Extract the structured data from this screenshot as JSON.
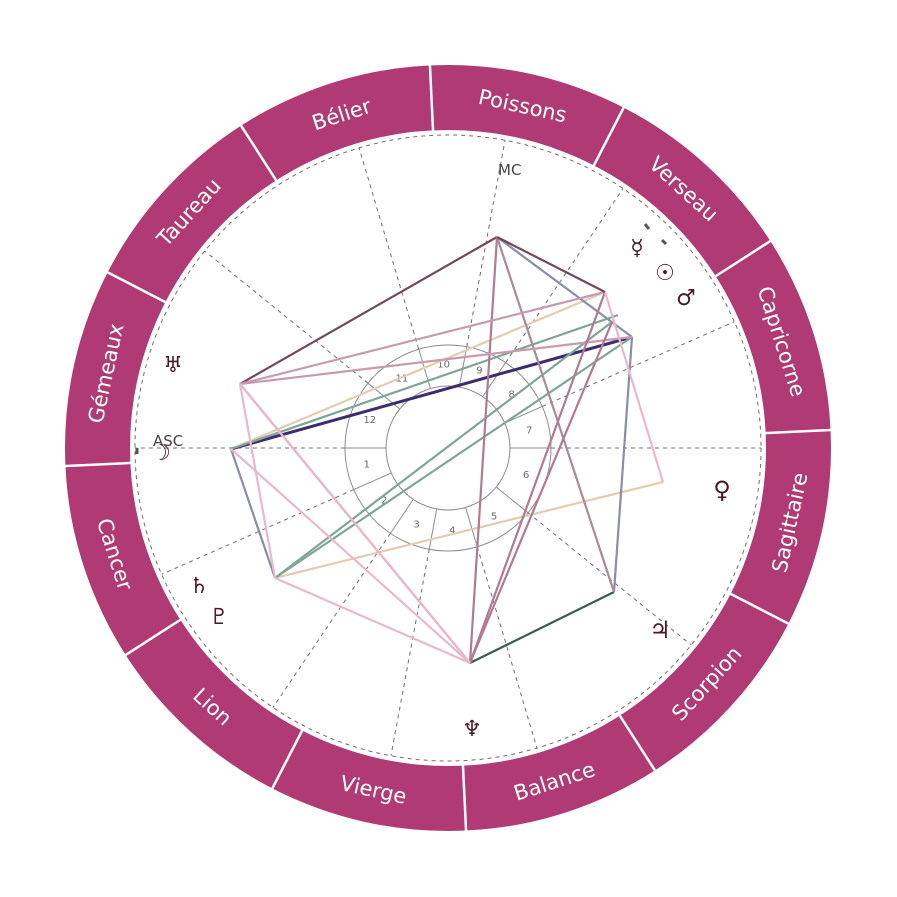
{
  "colors": {
    "zodiac_ring": "#b03a73",
    "ring_divider": "#ffffff",
    "glyph": "#4a1a22",
    "dash": "#6f6f6f",
    "inner_circle": "#8c8c8c"
  },
  "signs": [
    "Bélier",
    "Poissons",
    "Verseau",
    "Capricorne",
    "Sagittaire",
    "Scorpion",
    "Balance",
    "Vierge",
    "Lion",
    "Cancer",
    "Gémeaux",
    "Taureau"
  ],
  "angles": {
    "asc_label": "ASC",
    "mc_label": "MC"
  },
  "house_numbers": [
    "1",
    "2",
    "3",
    "4",
    "5",
    "6",
    "7",
    "8",
    "9",
    "10",
    "11",
    "12"
  ],
  "planets": [
    {
      "name": "mercury",
      "symbol": "☿"
    },
    {
      "name": "sun",
      "symbol": "☉"
    },
    {
      "name": "mars",
      "symbol": "♂"
    },
    {
      "name": "venus",
      "symbol": "♀"
    },
    {
      "name": "jupiter",
      "symbol": "♃"
    },
    {
      "name": "neptune",
      "symbol": "♆"
    },
    {
      "name": "pluto",
      "symbol": "♇"
    },
    {
      "name": "saturn",
      "symbol": "♄"
    },
    {
      "name": "moon",
      "symbol": "☽"
    },
    {
      "name": "uranus",
      "symbol": "♅"
    }
  ]
}
